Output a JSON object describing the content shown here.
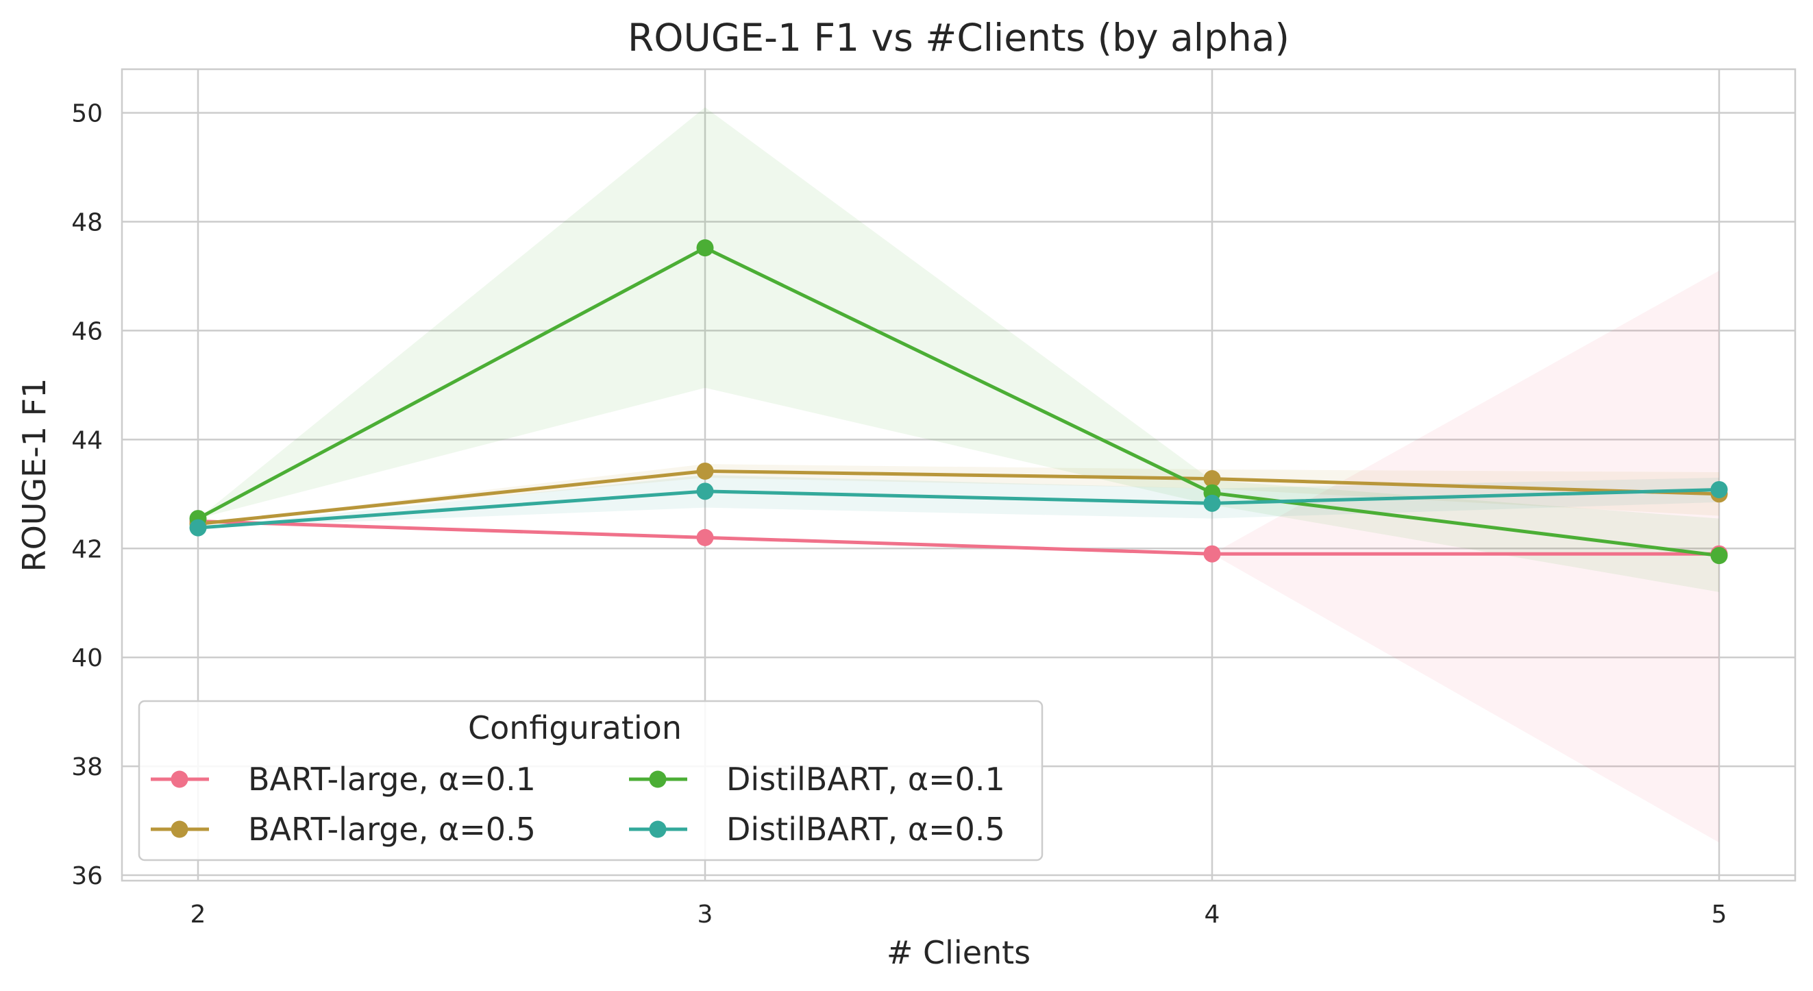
{
  "chart_data": {
    "type": "line",
    "title": "ROUGE-1 F1 vs #Clients (by alpha)",
    "xlabel": "# Clients",
    "ylabel": "ROUGE-1 F1",
    "x": [
      2,
      3,
      4,
      5
    ],
    "xlim": [
      1.85,
      5.15
    ],
    "ylim": [
      35.9,
      50.8
    ],
    "yticks": [
      36,
      38,
      40,
      42,
      44,
      46,
      48,
      50
    ],
    "grid": true,
    "legend": {
      "title": "Configuration",
      "placement": "lower-left",
      "columns": 2
    },
    "series": [
      {
        "name": "BART-large, α=0.1",
        "color": "#f0718a",
        "values": [
          42.5,
          42.2,
          41.9,
          41.9
        ],
        "band_low": [
          42.5,
          42.2,
          41.9,
          36.6
        ],
        "band_high": [
          42.5,
          42.2,
          41.9,
          47.1
        ]
      },
      {
        "name": "BART-large, α=0.5",
        "color": "#b8963a",
        "values": [
          42.45,
          43.42,
          43.28,
          43.0
        ],
        "band_low": [
          42.45,
          43.3,
          43.1,
          42.6
        ],
        "band_high": [
          42.45,
          43.55,
          43.45,
          43.4
        ]
      },
      {
        "name": "DistilBART, α=0.1",
        "color": "#4bae35",
        "values": [
          42.55,
          47.52,
          43.02,
          41.87
        ],
        "band_low": [
          42.55,
          44.95,
          42.8,
          41.2
        ],
        "band_high": [
          42.55,
          50.1,
          43.25,
          42.55
        ]
      },
      {
        "name": "DistilBART, α=0.5",
        "color": "#33a99b",
        "values": [
          42.38,
          43.05,
          42.83,
          43.08
        ],
        "band_low": [
          42.38,
          42.75,
          42.55,
          42.85
        ],
        "band_high": [
          42.38,
          43.35,
          43.1,
          43.3
        ]
      }
    ]
  }
}
